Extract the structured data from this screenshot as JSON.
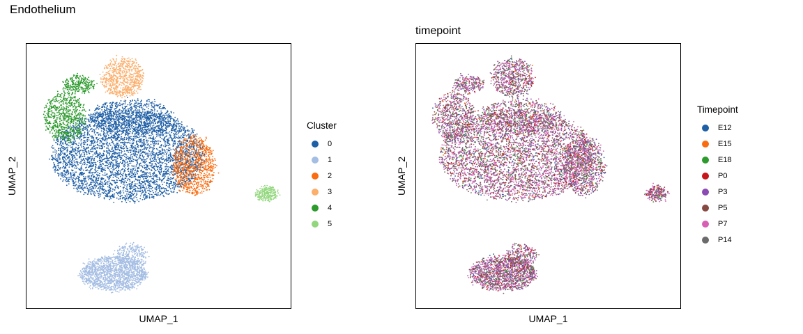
{
  "page_title": "Endothelium",
  "chart_data": [
    {
      "type": "scatter",
      "title": "",
      "xlabel": "UMAP_1",
      "ylabel": "UMAP_2",
      "legend": {
        "title": "Cluster",
        "position": "right",
        "entries": [
          {
            "label": "0",
            "color": "#1f5fa6"
          },
          {
            "label": "1",
            "color": "#a4bde3"
          },
          {
            "label": "2",
            "color": "#f96c10"
          },
          {
            "label": "3",
            "color": "#fcae6b"
          },
          {
            "label": "4",
            "color": "#2c9a2c"
          },
          {
            "label": "5",
            "color": "#92d77d"
          }
        ]
      },
      "grid": false
    },
    {
      "type": "scatter",
      "title": "timepoint",
      "xlabel": "UMAP_1",
      "ylabel": "UMAP_2",
      "legend": {
        "title": "Timepoint",
        "position": "right",
        "entries": [
          {
            "label": "E12",
            "color": "#1f5fa6"
          },
          {
            "label": "E15",
            "color": "#f96c10"
          },
          {
            "label": "E18",
            "color": "#2c9a2c"
          },
          {
            "label": "P0",
            "color": "#c8161d"
          },
          {
            "label": "P3",
            "color": "#8a4bb3"
          },
          {
            "label": "P5",
            "color": "#874a42"
          },
          {
            "label": "P7",
            "color": "#d760b4"
          },
          {
            "label": "P14",
            "color": "#6b6b6b"
          }
        ]
      },
      "grid": false
    }
  ]
}
